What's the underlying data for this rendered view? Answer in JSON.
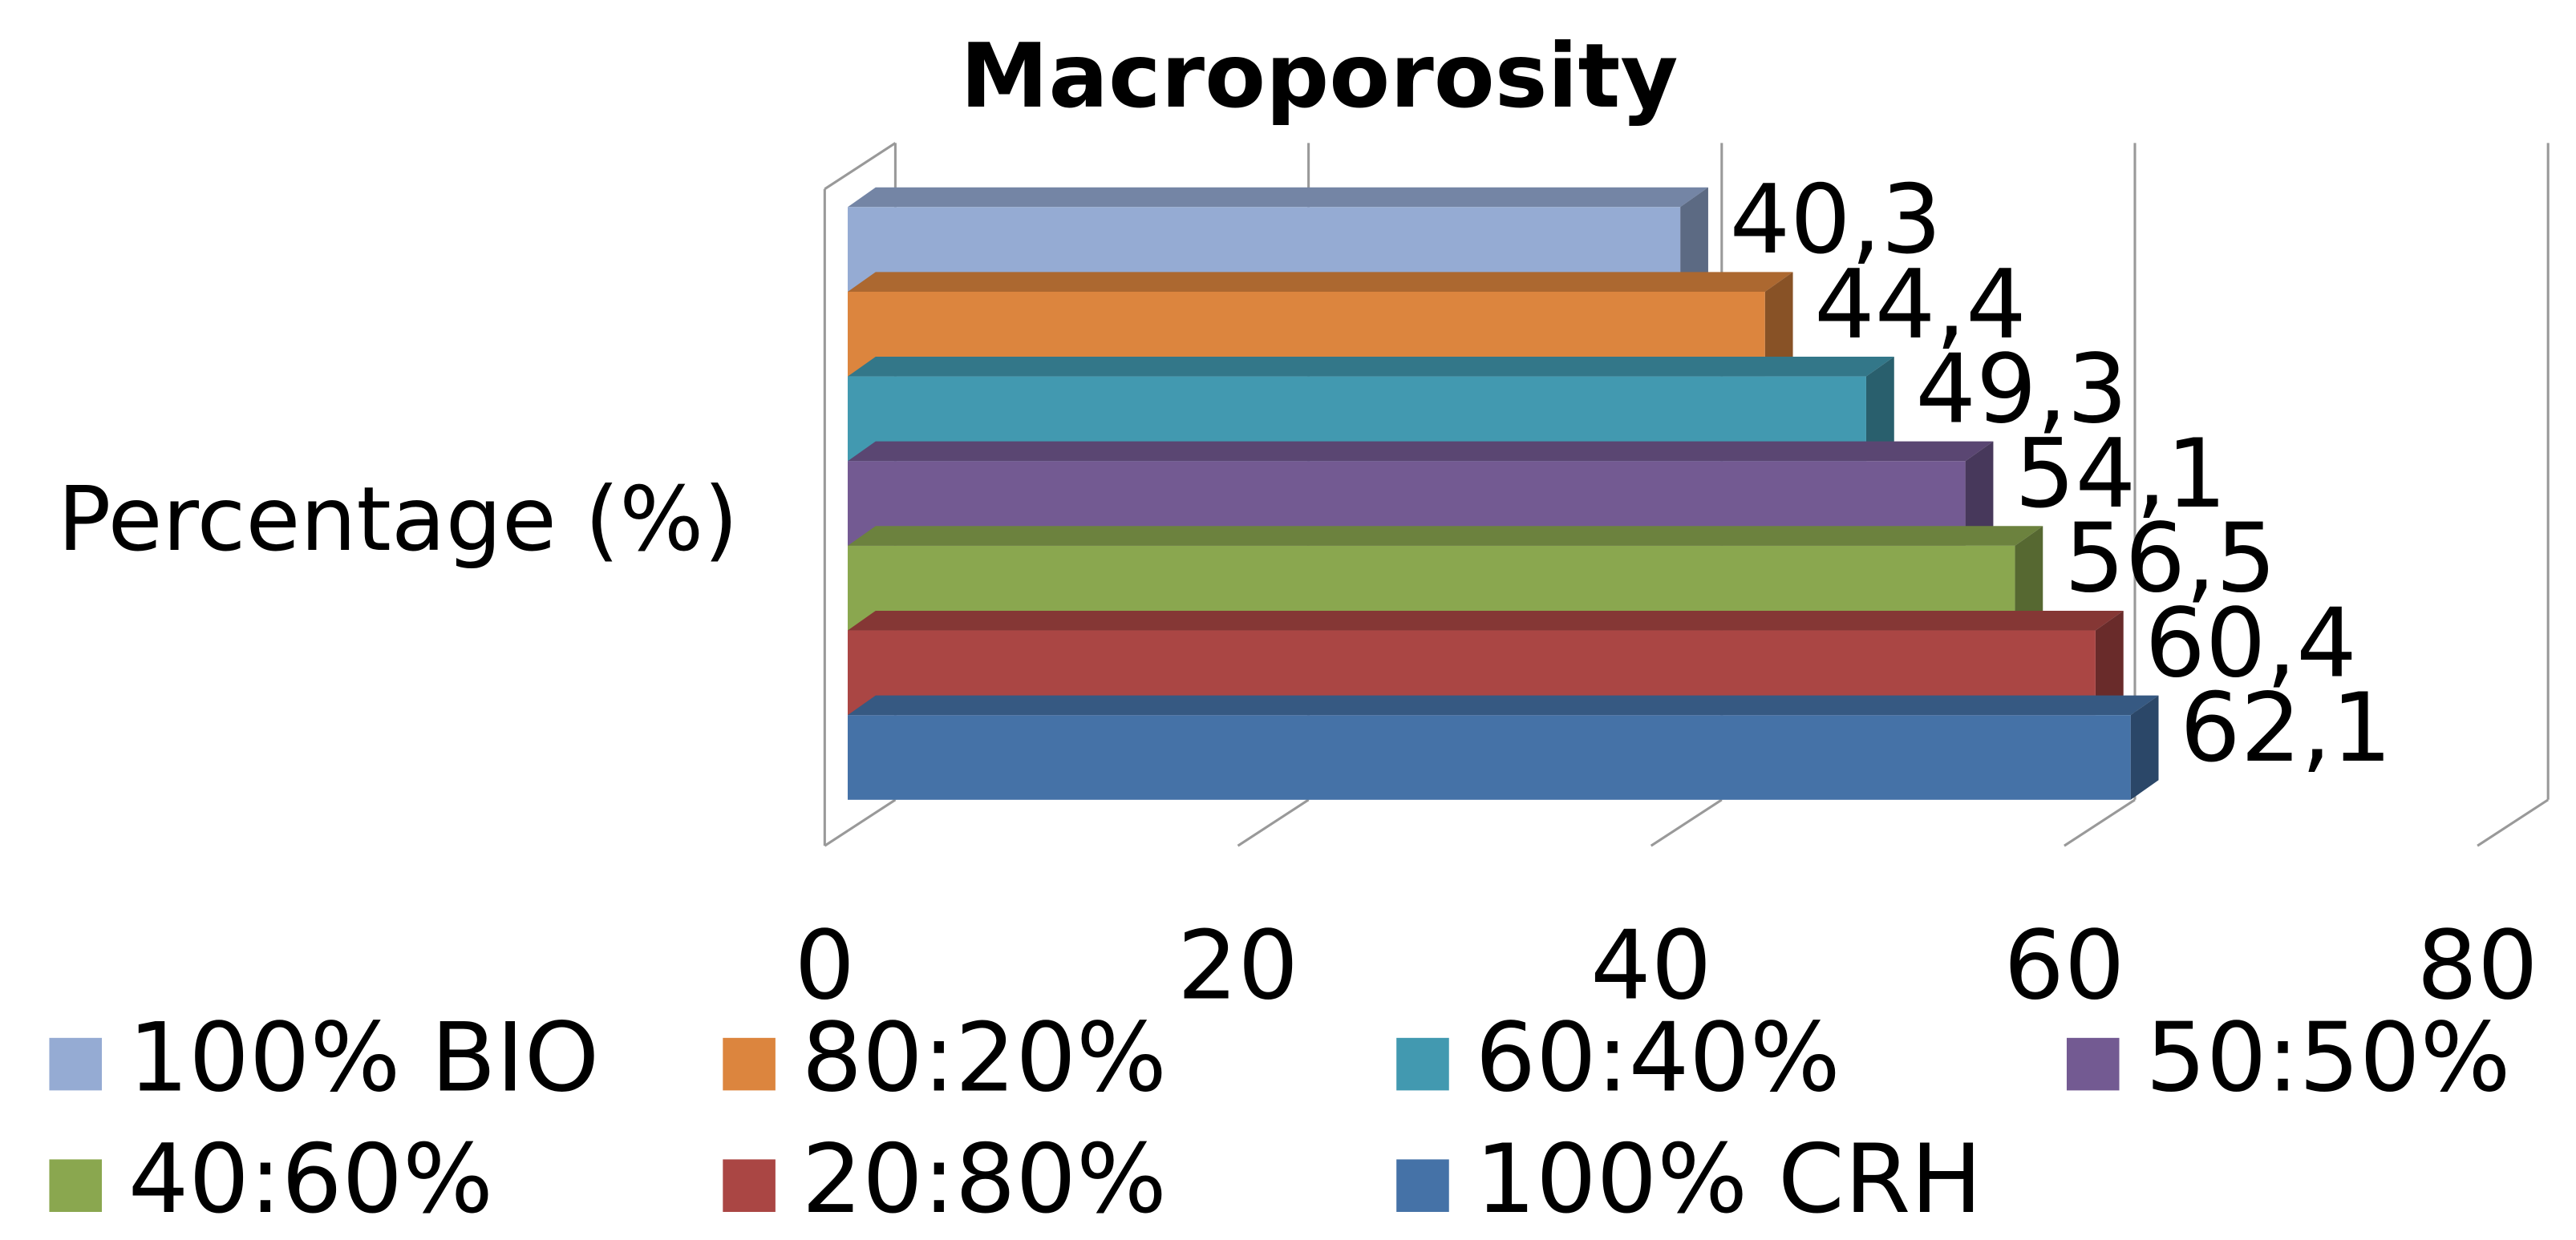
{
  "chart_data": {
    "type": "bar3d_horizontal",
    "title": "Macroporosity",
    "y_label": "Percentage (%)",
    "categories": [
      null
    ],
    "series": [
      {
        "name": "100% BIO",
        "color": "#95abd3",
        "values": [
          40.3
        ],
        "value_labels": [
          "40,3"
        ]
      },
      {
        "name": "80:20%",
        "color": "#dc853e",
        "values": [
          44.4
        ],
        "value_labels": [
          "44,4"
        ]
      },
      {
        "name": "60:40%",
        "color": "#4299b0",
        "values": [
          49.3
        ],
        "value_labels": [
          "49,3"
        ]
      },
      {
        "name": "50:50%",
        "color": "#735a92",
        "values": [
          54.1
        ],
        "value_labels": [
          "54,1"
        ]
      },
      {
        "name": "40:60%",
        "color": "#8aa74f",
        "values": [
          56.5
        ],
        "value_labels": [
          "56,5"
        ]
      },
      {
        "name": "20:80%",
        "color": "#aa4644",
        "values": [
          60.4
        ],
        "value_labels": [
          "60,4"
        ]
      },
      {
        "name": "100% CRH",
        "color": "#4572a7",
        "values": [
          62.1
        ],
        "value_labels": [
          "62,1"
        ]
      }
    ],
    "xlim": [
      0,
      80
    ],
    "xticks": [
      0,
      20,
      40,
      60,
      80
    ],
    "grid": true,
    "legend": "bottom"
  }
}
